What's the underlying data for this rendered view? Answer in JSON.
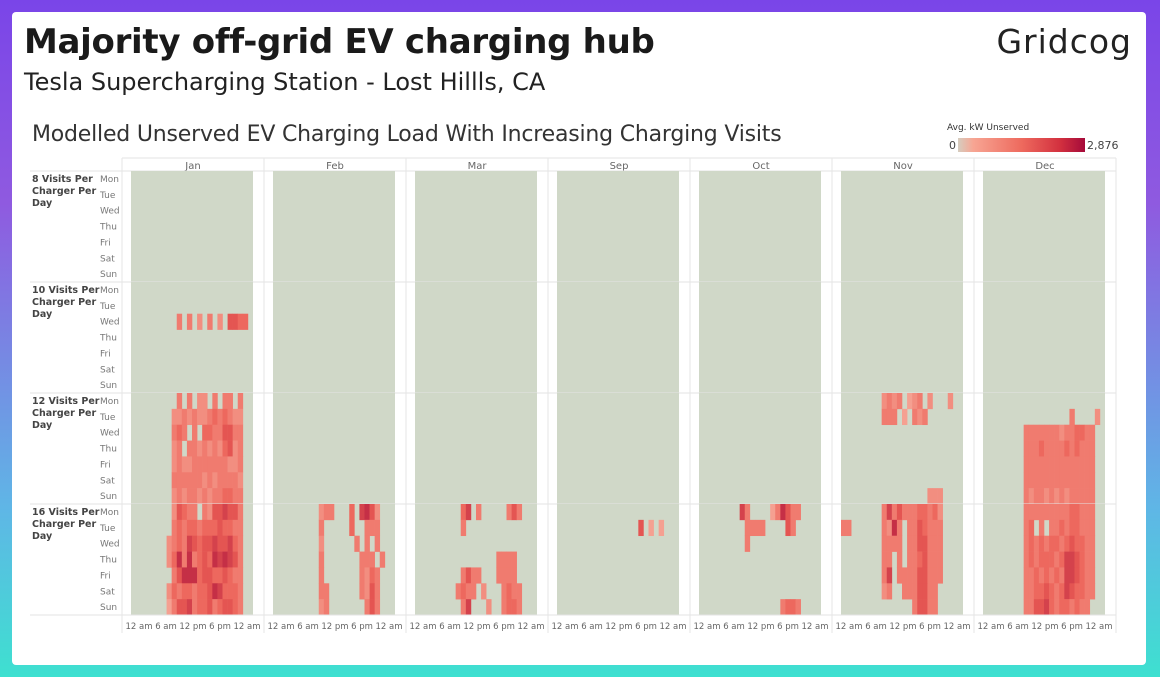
{
  "header": {
    "title": "Majority off-grid EV charging hub",
    "subtitle": "Tesla Supercharging Station - Lost Hillls, CA",
    "logo": "Gridcog"
  },
  "chart_data": {
    "type": "heatmap",
    "title": "Modelled Unserved EV Charging Load With Increasing Charging Visits",
    "legend": {
      "title": "Avg. kW Unserved",
      "min": 0,
      "max": 2876,
      "min_label": "0",
      "max_label": "2,876",
      "placement": "top-right"
    },
    "colors": {
      "zero": "#d0d8c8",
      "low": "#f7b3a2",
      "mid": "#ec5f55",
      "high": "#a5083a"
    },
    "columns": [
      "Jan",
      "Feb",
      "Mar",
      "Sep",
      "Oct",
      "Nov",
      "Dec"
    ],
    "row_groups": [
      "8 Visits Per Charger Per Day",
      "10 Visits Per Charger Per Day",
      "12 Visits Per Charger Per Day",
      "16 Visits Per Charger Per Day"
    ],
    "days": [
      "Mon",
      "Tue",
      "Wed",
      "Thu",
      "Fri",
      "Sat",
      "Sun"
    ],
    "x_tick_labels": [
      "12 am",
      "6 am",
      "12 pm",
      "6 pm",
      "12 am"
    ],
    "x_unit": "hour of day (0-23)",
    "value_encoding": "each digit = hourly intensity level 0-9; approx kW = level / 9 x 2876",
    "cells": {
      "1": {
        "Jan": [
          "000000000000000000000000",
          "000000000000000000000000",
          "000000000303020302055440",
          "000000000000000000000000",
          "000000000000000000000000",
          "000000000000000000000000",
          "000000000000000000000000"
        ]
      },
      "2": {
        "Jan": [
          "000000000303022030330300",
          "000000002232322343432200",
          "000000003430304433553300",
          "000000002303323232452300",
          "000000002322333333322300",
          "000000003333332323333200",
          "000000002323323233443300"
        ],
        "Nov": [
          "000000002323012302000200",
          "000000003330103230000000",
          "000000000000000000000000",
          "000000000000000000000000",
          "000000000000000000000000",
          "000000000000000000000000",
          "000000000000000002220000"
        ],
        "Dec": [
          "000000000000000000000000",
          "000000000000000003000020",
          "000000003333333233443300",
          "000000003334333343433300",
          "000000003333333333333300",
          "000000003333333333333300",
          "000000003233232323333300"
        ]
      },
      "3": {
        "Jan": [
          "000000002543303255655300",
          "000000003434434445443300",
          "000000023436545565564300",
          "000000024737345476765300",
          "000000003577745544543300",
          "000000024344344576444300",
          "000000013556344534554300"
        ],
        "Feb": [
          "000000000233000406752000",
          "000000000300000400333000",
          "000000000200000030303000",
          "000000000300000003330300",
          "000000000300000003243000",
          "000000000330000003253000",
          "000000000230000000353000"
        ],
        "Mar": [
          "000000000460300000353000",
          "000000000300000000000000",
          "000000000000000000000000",
          "000000000000000033330000",
          "000000000353300033330000",
          "000000003433020003433000",
          "000000000360002003443000"
        ],
        "Sep": [
          "000000000000000000000000",
          "000000000000000050101000",
          "000000000000000000000000",
          "000000000000000000000000",
          "000000000000000000000000",
          "000000000000000000000000",
          "000000000000000000000000"
        ],
        "Oct": [
          "000000006300001375330000",
          "000000000333300005300000",
          "000000000300000000000000",
          "000000000000000000000000",
          "000000000000000000000000",
          "000000000000000000000000",
          "000000000000000034430000"
        ],
        "Nov": [
          "000000003635333443420000",
          "330000003273033543330000",
          "000000003333033553330000",
          "000000003303033453330000",
          "000000003603333553330000",
          "000000002300333553300000",
          "000000000000003553300000"
        ],
        "Dec": [
          "000000003333333334433300",
          "000000003403033434433300",
          "000000003434344345443300",
          "000000003434443466543300",
          "000000003343434366543300",
          "000000003344543465443300",
          "000000003355643443433000"
        ]
      }
    }
  }
}
